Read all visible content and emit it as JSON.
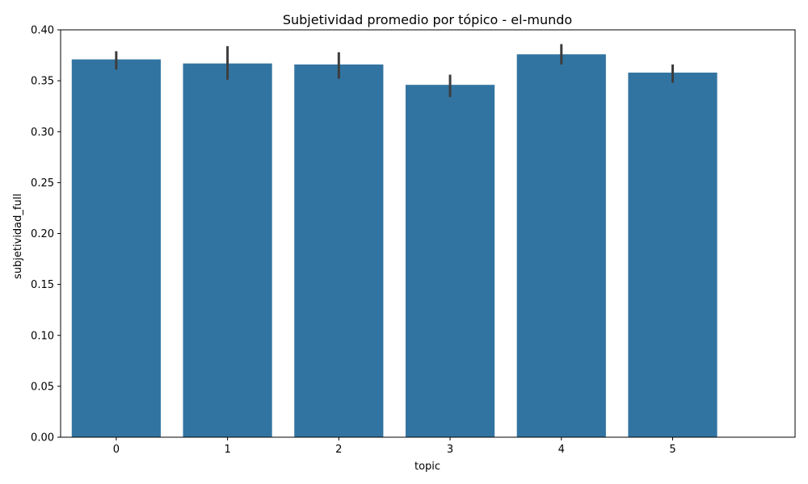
{
  "chart_data": {
    "type": "bar",
    "title": "Subjetividad promedio por tópico - el-mundo",
    "xlabel": "topic",
    "ylabel": "subjetividad_full",
    "categories": [
      "0",
      "1",
      "2",
      "3",
      "4",
      "5"
    ],
    "values": [
      0.371,
      0.367,
      0.366,
      0.346,
      0.376,
      0.358
    ],
    "error_low": [
      0.361,
      0.351,
      0.352,
      0.334,
      0.366,
      0.348
    ],
    "error_high": [
      0.379,
      0.384,
      0.378,
      0.356,
      0.386,
      0.366
    ],
    "ylim": [
      0,
      0.4
    ],
    "yticks": [
      "0.00",
      "0.05",
      "0.10",
      "0.15",
      "0.20",
      "0.25",
      "0.30",
      "0.35",
      "0.40"
    ],
    "bar_color": "#3274a1",
    "error_color": "#3d3d3d",
    "grid": false,
    "legend": "none"
  }
}
